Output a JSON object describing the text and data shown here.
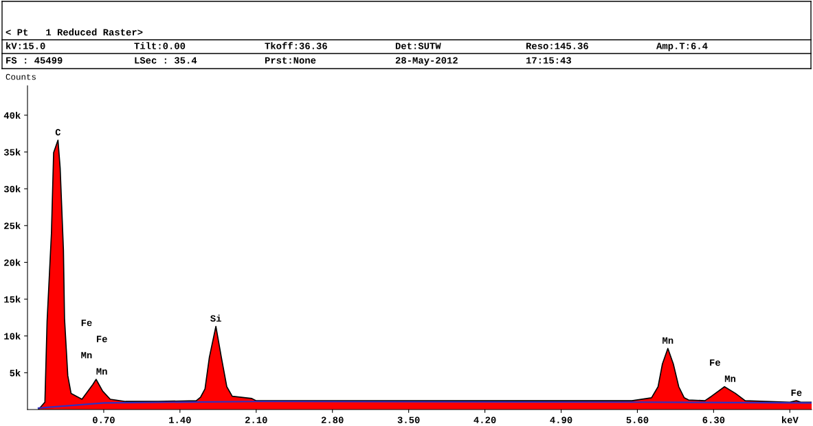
{
  "chart_data": {
    "type": "area",
    "ylabel": "Counts",
    "annotations": [
      "< Pt   1 Reduced Raster>",
      "kV:15.0",
      "Tilt:0.00",
      "Tkoff:36.36",
      "Det:SUTW",
      "Reso:145.36",
      "Amp.T:6.4",
      "FS : 45499",
      "LSec : 35.4",
      "Prst:None",
      "28-May-2012",
      "17:15:43",
      {
        "text": "C",
        "x": 0.28,
        "y": 36600
      },
      {
        "text": "Mn",
        "x": 0.63,
        "y": 4100
      },
      {
        "text": "Mn",
        "x": 0.63,
        "y": 4100
      },
      "Fe",
      "Fe",
      {
        "text": "Si",
        "x": 1.73,
        "y": 11300
      },
      {
        "text": "Mn",
        "x": 5.88,
        "y": 8300
      },
      {
        "text": "Mn",
        "x": 6.4,
        "y": 3100
      },
      {
        "text": "Fe",
        "x": 6.4,
        "y": 3100
      },
      {
        "text": "Fe",
        "x": 7.06,
        "y": 1200
      }
    ],
    "series": [
      {
        "type": "area",
        "color": "#ff0000",
        "x": [
          0.1,
          0.16,
          0.18,
          0.22,
          0.24,
          0.28,
          0.3,
          0.33,
          0.34,
          0.37,
          0.4,
          0.5,
          0.6,
          0.63,
          0.69,
          0.76,
          0.9,
          1.2,
          1.55,
          1.59,
          1.63,
          1.67,
          1.73,
          1.78,
          1.83,
          1.88,
          2.06,
          2.1,
          3.6,
          5.55,
          5.73,
          5.79,
          5.83,
          5.88,
          5.93,
          5.98,
          6.03,
          6.07,
          6.22,
          6.28,
          6.4,
          6.5,
          6.59,
          7.0,
          7.06,
          7.1,
          7.2
        ],
        "values": [
          0,
          1000,
          12000,
          24000,
          34900,
          36600,
          32800,
          21700,
          12400,
          4600,
          2200,
          1400,
          3400,
          4100,
          2500,
          1400,
          1100,
          1100,
          1200,
          1700,
          2800,
          7100,
          11300,
          7100,
          3100,
          1800,
          1500,
          1200,
          1200,
          1200,
          1600,
          3100,
          6200,
          8300,
          6200,
          3100,
          1600,
          1300,
          1200,
          1800,
          3100,
          2200,
          1200,
          1000,
          1200,
          1000,
          1000
        ]
      },
      {
        "type": "line",
        "color": "#3030c0",
        "x": [
          0.1,
          0.7,
          2.1,
          5.6,
          7.2
        ],
        "values": [
          200,
          900,
          1100,
          1000,
          900
        ]
      }
    ],
    "xlim": [
      0,
      7.2
    ],
    "xticks": [
      {
        "value": 0.7,
        "label": "0.70"
      },
      {
        "value": 1.4,
        "label": "1.40"
      },
      {
        "value": 2.1,
        "label": "2.10"
      },
      {
        "value": 2.8,
        "label": "2.80"
      },
      {
        "value": 3.5,
        "label": "3.50"
      },
      {
        "value": 4.2,
        "label": "4.20"
      },
      {
        "value": 4.9,
        "label": "4.90"
      },
      {
        "value": 5.6,
        "label": "5.60"
      },
      {
        "value": 6.3,
        "label": "6.30"
      },
      {
        "value": 7.0,
        "label": "keV"
      }
    ],
    "ylim": [
      0,
      44000
    ],
    "yticks": [
      {
        "value": 5000,
        "label": "5k"
      },
      {
        "value": 10000,
        "label": "10k"
      },
      {
        "value": 15000,
        "label": "15k"
      },
      {
        "value": 20000,
        "label": "20k"
      },
      {
        "value": 25000,
        "label": "25k"
      },
      {
        "value": 30000,
        "label": "30k"
      },
      {
        "value": 35000,
        "label": "35k"
      },
      {
        "value": 40000,
        "label": "40k"
      }
    ],
    "grid": false,
    "legend": false
  }
}
